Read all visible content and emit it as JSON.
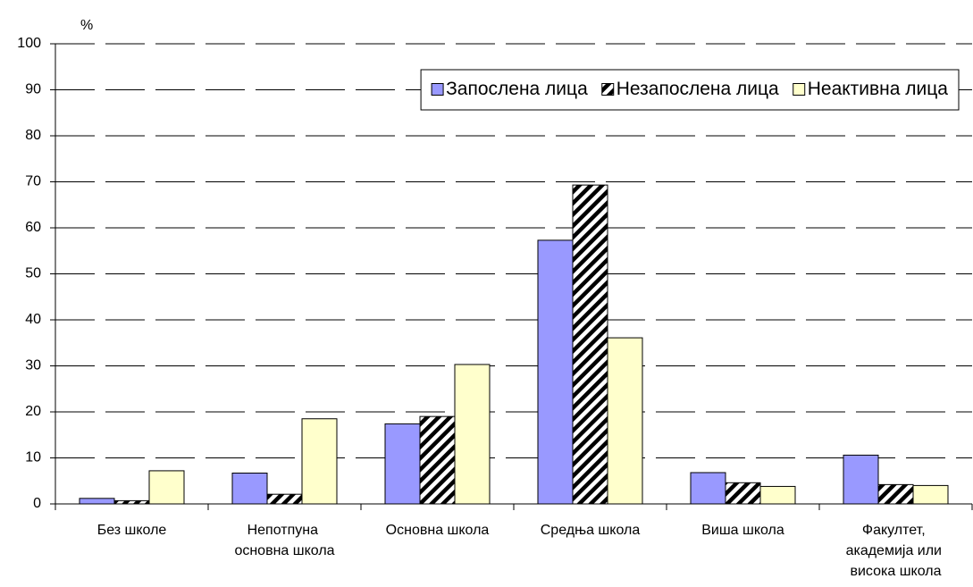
{
  "chart_data": {
    "type": "bar",
    "y_label": "%",
    "categories": [
      "Без школе",
      "Непотпуна основна школа",
      "Основна школа",
      "Средња школа",
      "Виша школа",
      "Факултет, академија или висока школа"
    ],
    "series": [
      {
        "name": "Запослена лица",
        "color": "#9999ff",
        "values": [
          1.2,
          6.7,
          17.4,
          57.3,
          6.8,
          10.6
        ]
      },
      {
        "name": "Незапослена лица",
        "color": "hatch",
        "values": [
          0.7,
          2.1,
          19.0,
          69.3,
          4.6,
          4.2
        ]
      },
      {
        "name": "Неактивна лица",
        "color": "#ffffcc",
        "values": [
          7.2,
          18.5,
          30.3,
          36.1,
          3.8,
          4.0
        ]
      }
    ],
    "ylim": [
      0,
      100
    ],
    "yticks": [
      0,
      10,
      20,
      30,
      40,
      50,
      60,
      70,
      80,
      90,
      100
    ],
    "grid": true,
    "legend": "top-right"
  }
}
